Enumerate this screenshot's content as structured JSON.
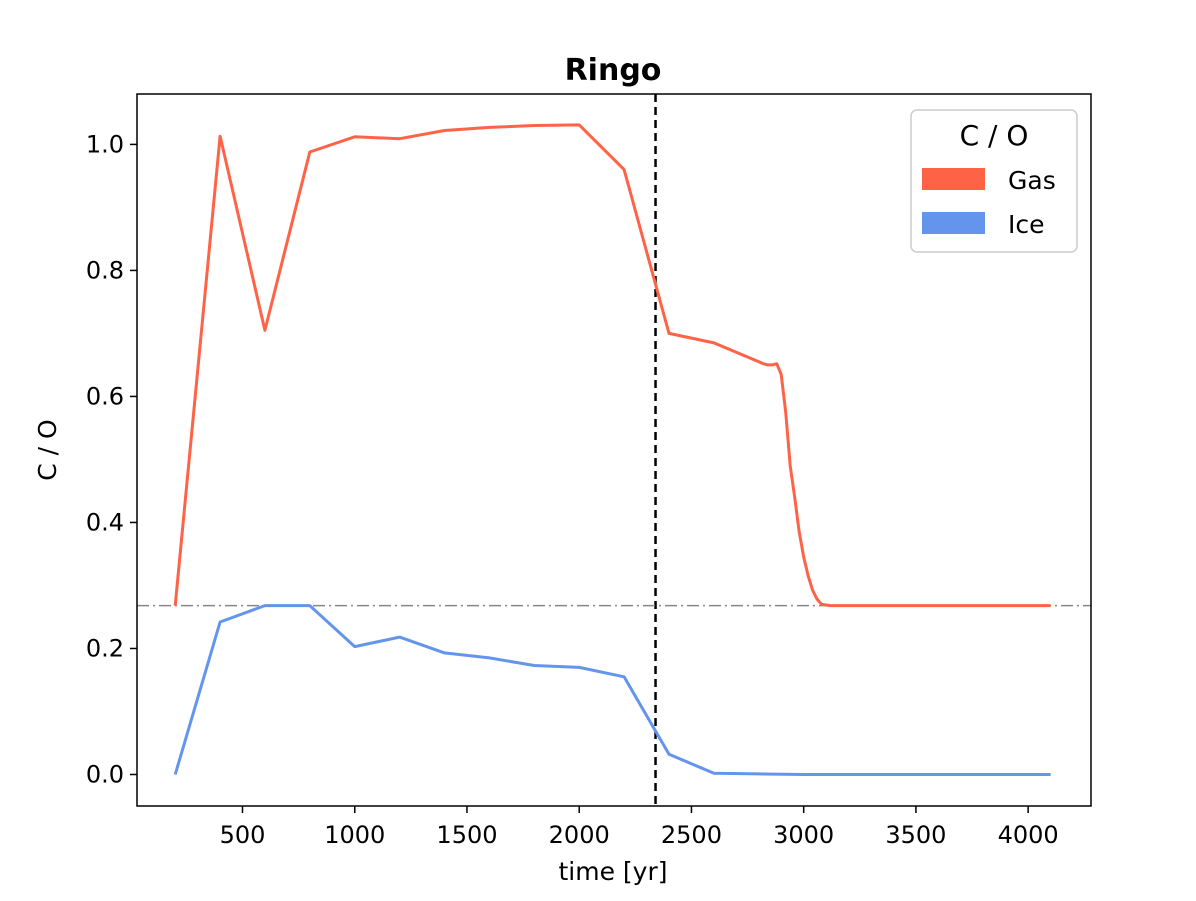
{
  "chart_data": {
    "type": "line",
    "title": "Ringo",
    "xlabel": "time [yr]",
    "ylabel": "C / O",
    "xlim": [
      30,
      4280
    ],
    "ylim": [
      -0.05,
      1.08
    ],
    "xticks": [
      500,
      1000,
      1500,
      2000,
      2500,
      3000,
      3500,
      4000
    ],
    "yticks": [
      0.0,
      0.2,
      0.4,
      0.6,
      0.8,
      1.0
    ],
    "xtick_labels": [
      "500",
      "1000",
      "1500",
      "2000",
      "2500",
      "3000",
      "3500",
      "4000"
    ],
    "ytick_labels": [
      "0.0",
      "0.2",
      "0.4",
      "0.6",
      "0.8",
      "1.0"
    ],
    "grid": false,
    "legend": {
      "title": "C / O",
      "placement": "top-right"
    },
    "reference_lines": [
      {
        "orientation": "vertical",
        "value": 2340,
        "style": "dashed",
        "color": "#000000"
      },
      {
        "orientation": "horizontal",
        "value": 0.268,
        "style": "dashdot",
        "color": "#888888"
      }
    ],
    "series": [
      {
        "name": "Gas",
        "color": "#ff6347",
        "x": [
          200,
          400,
          600,
          800,
          1000,
          1200,
          1400,
          1600,
          1800,
          2000,
          2200,
          2400,
          2600,
          2800,
          2820,
          2840,
          2860,
          2880,
          2900,
          2920,
          2940,
          2960,
          2980,
          3000,
          3020,
          3040,
          3060,
          3080,
          3100,
          3120,
          3150,
          3200,
          3400,
          3600,
          3800,
          4000,
          4100
        ],
        "y": [
          0.268,
          1.013,
          0.705,
          0.988,
          1.012,
          1.009,
          1.022,
          1.027,
          1.03,
          1.031,
          0.96,
          0.7,
          0.685,
          0.655,
          0.652,
          0.65,
          0.65,
          0.652,
          0.635,
          0.575,
          0.49,
          0.44,
          0.385,
          0.345,
          0.315,
          0.292,
          0.278,
          0.27,
          0.269,
          0.268,
          0.268,
          0.268,
          0.268,
          0.268,
          0.268,
          0.268,
          0.268
        ]
      },
      {
        "name": "Ice",
        "color": "#6495ed",
        "x": [
          200,
          400,
          600,
          800,
          1000,
          1200,
          1400,
          1600,
          1800,
          2000,
          2200,
          2400,
          2600,
          2800,
          3000,
          3200,
          3400,
          3600,
          3800,
          4000,
          4100
        ],
        "y": [
          0.0,
          0.242,
          0.268,
          0.268,
          0.203,
          0.218,
          0.193,
          0.185,
          0.173,
          0.17,
          0.155,
          0.032,
          0.002,
          0.001,
          0.0,
          0.0,
          0.0,
          0.0,
          0.0,
          0.0,
          0.0
        ]
      }
    ]
  }
}
